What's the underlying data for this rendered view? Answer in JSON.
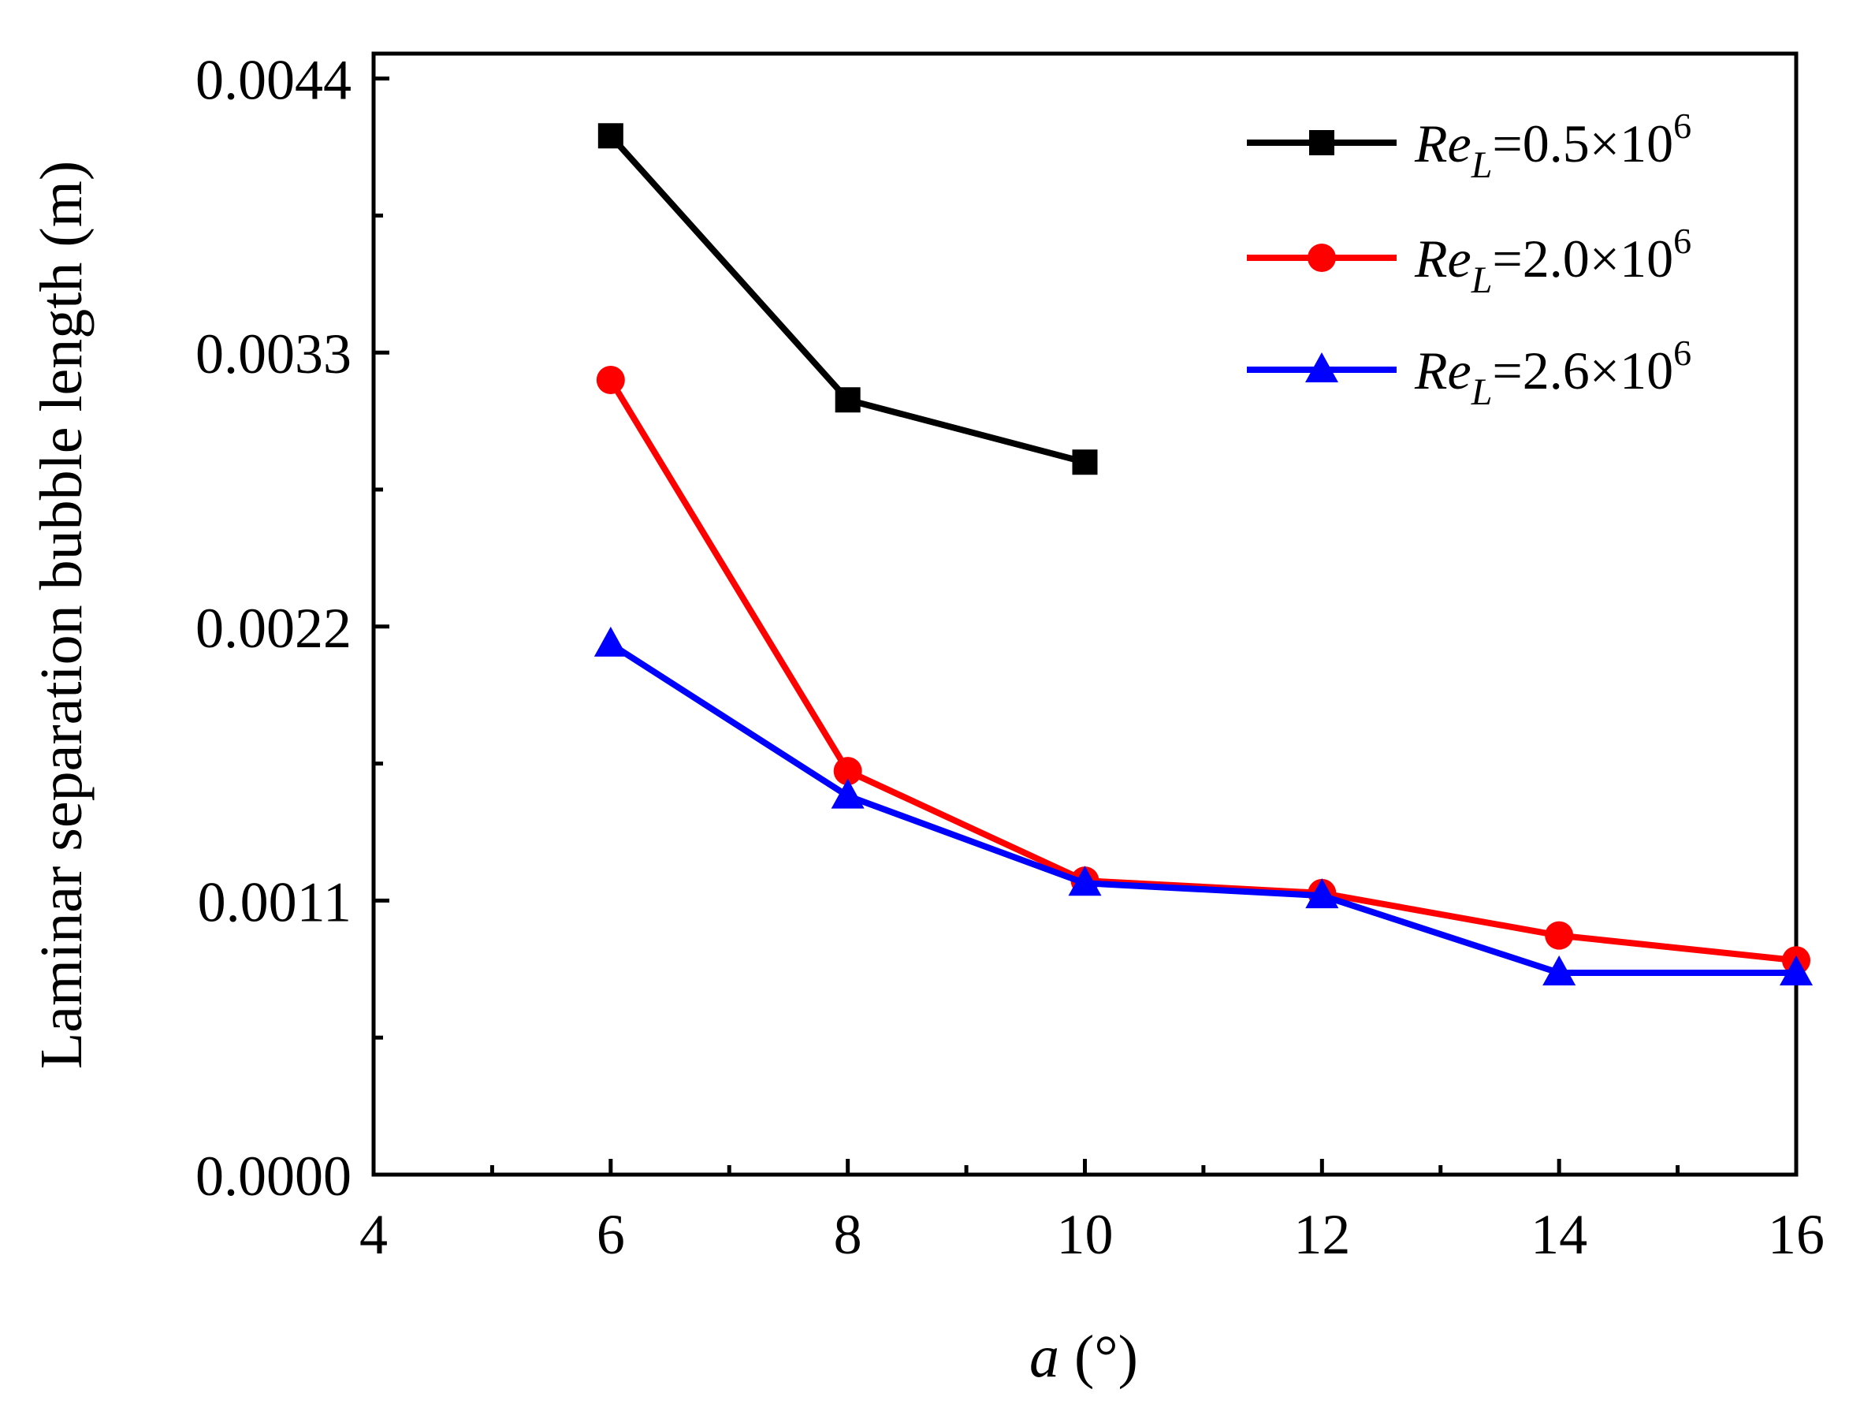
{
  "chart_data": {
    "type": "line",
    "title": "",
    "xlabel": {
      "symbol": "a",
      "unit": " (°)"
    },
    "ylabel": "Laminar separation bubble length (m)",
    "xlim": [
      4,
      16
    ],
    "ylim": [
      0,
      0.0045
    ],
    "x_ticks": [
      4,
      6,
      8,
      10,
      12,
      14,
      16
    ],
    "x_tick_labels": [
      "4",
      "6",
      "8",
      "10",
      "12",
      "14",
      "16"
    ],
    "x_minor_step": 1,
    "y_ticks": [
      0.0,
      0.0011,
      0.0022,
      0.0033,
      0.0044
    ],
    "y_tick_labels": [
      "0.0000",
      "0.0011",
      "0.0022",
      "0.0033",
      "0.0044"
    ],
    "y_minor_step": 0.00055,
    "grid": false,
    "legend_position": "top-right",
    "series": [
      {
        "name": "ReL=0.5×10^6",
        "label": {
          "re": "Re",
          "sub": "L",
          "eq": "=0.5×10",
          "sup": "6"
        },
        "color": "#000000",
        "marker": "square",
        "x": [
          6,
          8,
          10
        ],
        "y": [
          0.00417,
          0.00311,
          0.00286
        ]
      },
      {
        "name": "ReL=2.0×10^6",
        "label": {
          "re": "Re",
          "sub": "L",
          "eq": "=2.0×10",
          "sup": "6"
        },
        "color": "#ff0000",
        "marker": "circle",
        "x": [
          6,
          8,
          10,
          12,
          14,
          16
        ],
        "y": [
          0.00319,
          0.00162,
          0.00118,
          0.00113,
          0.00096,
          0.00086
        ]
      },
      {
        "name": "ReL=2.6×10^6",
        "label": {
          "re": "Re",
          "sub": "L",
          "eq": "=2.6×10",
          "sup": "6"
        },
        "color": "#0000ff",
        "marker": "triangle",
        "x": [
          6,
          8,
          10,
          12,
          14,
          16
        ],
        "y": [
          0.00213,
          0.00152,
          0.00117,
          0.00112,
          0.00081,
          0.00081
        ]
      }
    ]
  }
}
